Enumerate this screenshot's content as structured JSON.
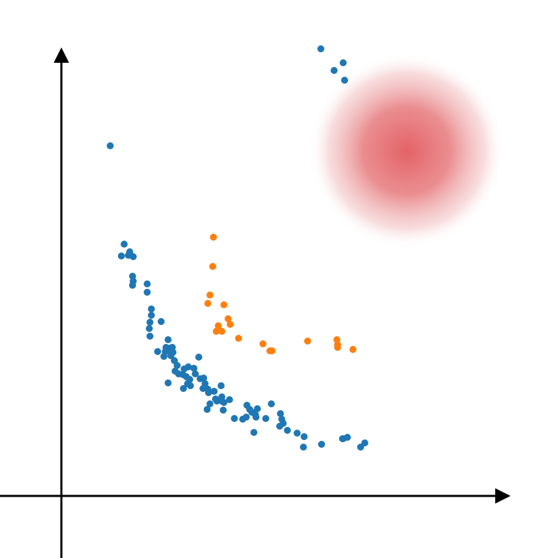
{
  "chart_data": {
    "type": "scatter",
    "title": "",
    "xlabel": "",
    "ylabel": "",
    "grid": false,
    "xlim": [
      -88,
      712
    ],
    "ylim": [
      -89,
      711
    ],
    "series": [
      {
        "color": "#1f77b4",
        "points": [
          [
            70,
            502
          ],
          [
            90,
            361
          ],
          [
            86,
            344
          ],
          [
            98,
            350
          ],
          [
            96,
            345
          ],
          [
            103,
            343
          ],
          [
            102,
            315
          ],
          [
            103,
            308
          ],
          [
            102,
            302
          ],
          [
            123,
            304
          ],
          [
            123,
            292
          ],
          [
            129,
            268
          ],
          [
            129,
            259
          ],
          [
            127,
            249
          ],
          [
            126,
            240
          ],
          [
            127,
            229
          ],
          [
            143,
            250
          ],
          [
            153,
            224
          ],
          [
            150,
            213
          ],
          [
            153,
            208
          ],
          [
            156,
            212
          ],
          [
            149,
            207
          ],
          [
            147,
            200
          ],
          [
            159,
            213
          ],
          [
            160,
            206
          ],
          [
            157,
            201
          ],
          [
            162,
            194
          ],
          [
            138,
            207
          ],
          [
            166,
            187
          ],
          [
            168,
            175
          ],
          [
            163,
            179
          ],
          [
            174,
            174
          ],
          [
            176,
            182
          ],
          [
            153,
            162
          ],
          [
            182,
            185
          ],
          [
            190,
            183
          ],
          [
            192,
            175
          ],
          [
            197,
            199
          ],
          [
            184,
            167
          ],
          [
            179,
            171
          ],
          [
            181,
            161
          ],
          [
            175,
            154
          ],
          [
            185,
            158
          ],
          [
            199,
            168
          ],
          [
            204,
            169
          ],
          [
            206,
            161
          ],
          [
            210,
            153
          ],
          [
            211,
            148
          ],
          [
            203,
            154
          ],
          [
            221,
            139
          ],
          [
            219,
            150
          ],
          [
            223,
            136
          ],
          [
            229,
            158
          ],
          [
            230,
            142
          ],
          [
            230,
            136
          ],
          [
            233,
            134
          ],
          [
            241,
            138
          ],
          [
            213,
            132
          ],
          [
            209,
            124
          ],
          [
            232,
            123
          ],
          [
            248,
            111
          ],
          [
            260,
            110
          ],
          [
            265,
            113
          ],
          [
            266,
            130
          ],
          [
            270,
            124
          ],
          [
            273,
            120
          ],
          [
            278,
            117
          ],
          [
            281,
            125
          ],
          [
            276,
            91
          ],
          [
            279,
            113
          ],
          [
            293,
            111
          ],
          [
            301,
            132
          ],
          [
            314,
            118
          ],
          [
            316,
            110
          ],
          [
            318,
            104
          ],
          [
            313,
            100
          ],
          [
            324,
            94
          ],
          [
            338,
            90
          ],
          [
            348,
            85
          ],
          [
            347,
            70
          ],
          [
            373,
            74
          ],
          [
            372,
            641
          ],
          [
            404,
            621
          ],
          [
            391,
            610
          ],
          [
            406,
            596
          ],
          [
            403,
            82
          ],
          [
            404,
            82
          ],
          [
            410,
            84
          ],
          [
            429,
            70
          ],
          [
            435,
            76
          ]
        ],
        "points_note_removed": null
      }
    ]
  }
}
